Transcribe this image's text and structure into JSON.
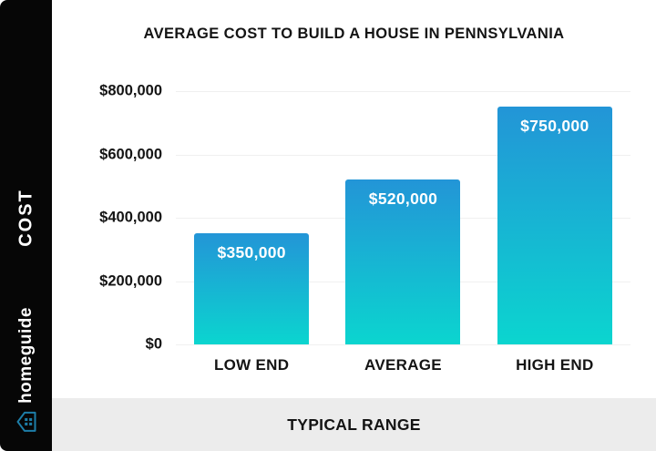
{
  "title": "AVERAGE COST TO BUILD A HOUSE IN PENNSYLVANIA",
  "sidebar": {
    "axis_label": "COST",
    "brand": "homeguide",
    "brand_icon": "homeguide-house-icon"
  },
  "footer": {
    "label": "TYPICAL RANGE"
  },
  "chart_data": {
    "type": "bar",
    "title": "AVERAGE COST TO BUILD A HOUSE IN PENNSYLVANIA",
    "categories": [
      "LOW END",
      "AVERAGE",
      "HIGH END"
    ],
    "values": [
      350000,
      520000,
      750000
    ],
    "value_labels": [
      "$350,000",
      "$520,000",
      "$750,000"
    ],
    "xlabel": "TYPICAL RANGE",
    "ylabel": "COST",
    "ylim": [
      0,
      800000
    ],
    "yticks": [
      0,
      200000,
      400000,
      600000,
      800000
    ],
    "ytick_labels": [
      "$0",
      "$200,000",
      "$400,000",
      "$600,000",
      "$800,000"
    ],
    "grid": true,
    "legend": false
  },
  "colors": {
    "bar_top": "#2395d7",
    "bar_bottom": "#0bd5cf",
    "sidebar_bg": "#060606",
    "footer_bg": "#ececec",
    "grid_line": "#f0f0f0",
    "logo_icon": "#1d7ea8",
    "axis_text": "#141414",
    "bar_label_text": "#ffffff"
  }
}
